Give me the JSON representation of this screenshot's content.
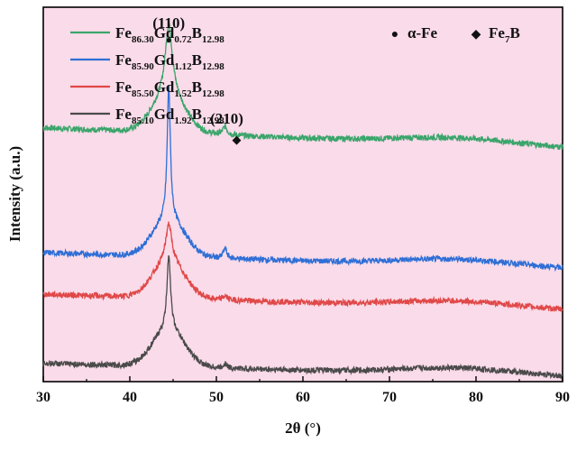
{
  "chart_data": {
    "type": "line",
    "title": "",
    "xlabel": "2θ (°)",
    "ylabel": "Intensity (a.u.)",
    "xlim": [
      30,
      90
    ],
    "ylim": [
      0,
      4.5
    ],
    "xticks": [
      "30",
      "40",
      "50",
      "60",
      "70",
      "80",
      "90"
    ],
    "yticks_visible": false,
    "background_color": "#fadbe9",
    "series": [
      {
        "name": "Fe86.30Gd0.72B12.98",
        "label_parts": [
          [
            "Fe",
            "86.30"
          ],
          [
            "Gd",
            "0.72"
          ],
          [
            "B",
            "12.98"
          ]
        ],
        "color": "#3aa56b",
        "baseline": 3.05,
        "end_value": 2.8,
        "peaks": [
          {
            "x": 44.5,
            "height": 0.85,
            "width": 0.5,
            "broad_height": 0.45,
            "broad_width": 2.6
          },
          {
            "x": 51.0,
            "height": 0.1,
            "width": 0.3
          }
        ],
        "hump": {
          "x": 78,
          "height": 0.08,
          "width": 10
        }
      },
      {
        "name": "Fe85.90Gd1.12B12.98",
        "label_parts": [
          [
            "Fe",
            "85.90"
          ],
          [
            "Gd",
            "1.12"
          ],
          [
            "B",
            "12.98"
          ]
        ],
        "color": "#2f6fd6",
        "baseline": 1.55,
        "end_value": 1.35,
        "peaks": [
          {
            "x": 44.5,
            "height": 1.6,
            "width": 0.22,
            "broad_height": 0.45,
            "broad_width": 2.6
          },
          {
            "x": 51.0,
            "height": 0.12,
            "width": 0.25
          }
        ],
        "hump": {
          "x": 78,
          "height": 0.08,
          "width": 10
        }
      },
      {
        "name": "Fe85.50Gd1.52B12.98",
        "label_parts": [
          [
            "Fe",
            "85.50"
          ],
          [
            "Gd",
            "1.52"
          ],
          [
            "B",
            "12.98"
          ]
        ],
        "color": "#e04848",
        "baseline": 1.05,
        "end_value": 0.85,
        "peaks": [
          {
            "x": 44.5,
            "height": 0.45,
            "width": 0.4,
            "broad_height": 0.45,
            "broad_width": 2.6
          },
          {
            "x": 51.0,
            "height": 0.05,
            "width": 0.3
          }
        ],
        "hump": {
          "x": 78,
          "height": 0.08,
          "width": 10
        }
      },
      {
        "name": "Fe85.10Gd1.92B12.98",
        "label_parts": [
          [
            "Fe",
            "85.10"
          ],
          [
            "Gd",
            "1.92"
          ],
          [
            "B",
            "12.98"
          ]
        ],
        "color": "#4a4a4a",
        "baseline": 0.22,
        "end_value": 0.05,
        "peaks": [
          {
            "x": 44.5,
            "height": 0.9,
            "width": 0.25,
            "broad_height": 0.45,
            "broad_width": 2.6
          },
          {
            "x": 51.0,
            "height": 0.06,
            "width": 0.25
          }
        ],
        "hump": {
          "x": 78,
          "height": 0.08,
          "width": 10
        }
      }
    ],
    "phase_legend": [
      {
        "symbol": "●",
        "name": "α-Fe"
      },
      {
        "symbol": "◆",
        "name": "Fe",
        "sub": "7",
        "suffix": "B"
      }
    ],
    "annotations": [
      {
        "text": "(110)",
        "symbol": "●",
        "x": 44.5,
        "y": 4.25
      },
      {
        "text": "(210)",
        "symbol": "◆",
        "x": 51.2,
        "y": 3.1
      }
    ]
  }
}
